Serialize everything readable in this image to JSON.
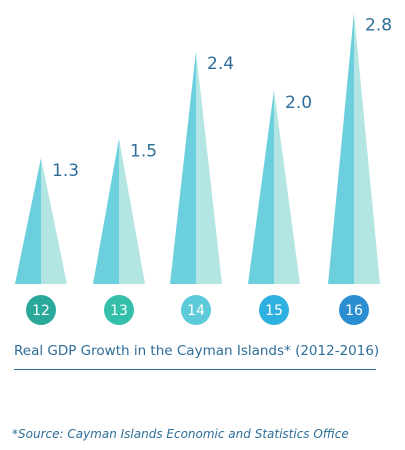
{
  "chart_data": {
    "type": "bar",
    "categories": [
      "12",
      "13",
      "14",
      "15",
      "16"
    ],
    "values": [
      1.3,
      1.5,
      2.4,
      2.0,
      2.8
    ],
    "value_labels": [
      "1.3",
      "1.5",
      "2.4",
      "2.0",
      "2.8"
    ],
    "title": "Real GDP Growth in the Cayman Islands* (2012-2016)",
    "xlabel": "",
    "ylabel": "",
    "ylim": [
      0,
      3
    ],
    "grid": false,
    "colors": {
      "spike_dark": "#6ccfdd",
      "spike_light": "#b3e6e3",
      "badge_12": "#2aa99b",
      "badge_13": "#33bfaa",
      "badge_14": "#5ccad8",
      "badge_15": "#2eb1e0",
      "badge_16": "#2a8ed0",
      "text": "#2e6e99"
    }
  },
  "footer": {
    "source": "*Source: Cayman Islands Economic and Statistics Office"
  }
}
